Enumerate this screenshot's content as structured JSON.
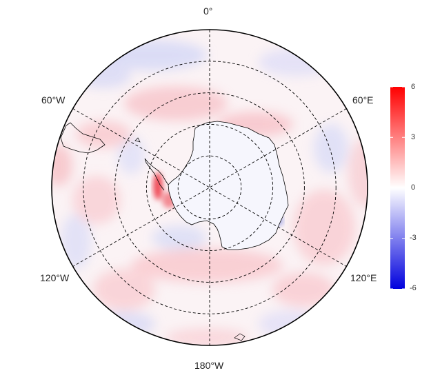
{
  "map": {
    "projection": "south-polar-stereographic",
    "region": "Antarctica / Southern Ocean",
    "graticule_style": "dashed",
    "longitude_labels": {
      "top": "0°",
      "bottom": "180°W",
      "upper_left": "60°W",
      "upper_right": "60°E",
      "lower_left": "120°W",
      "lower_right": "120°E"
    }
  },
  "colorbar": {
    "ticks": [
      "6",
      "3",
      "0",
      "-3",
      "-6"
    ],
    "min": -6,
    "max": 6,
    "colors": {
      "high": "#ff0000",
      "mid": "#ffffff",
      "low": "#0000dd"
    }
  }
}
